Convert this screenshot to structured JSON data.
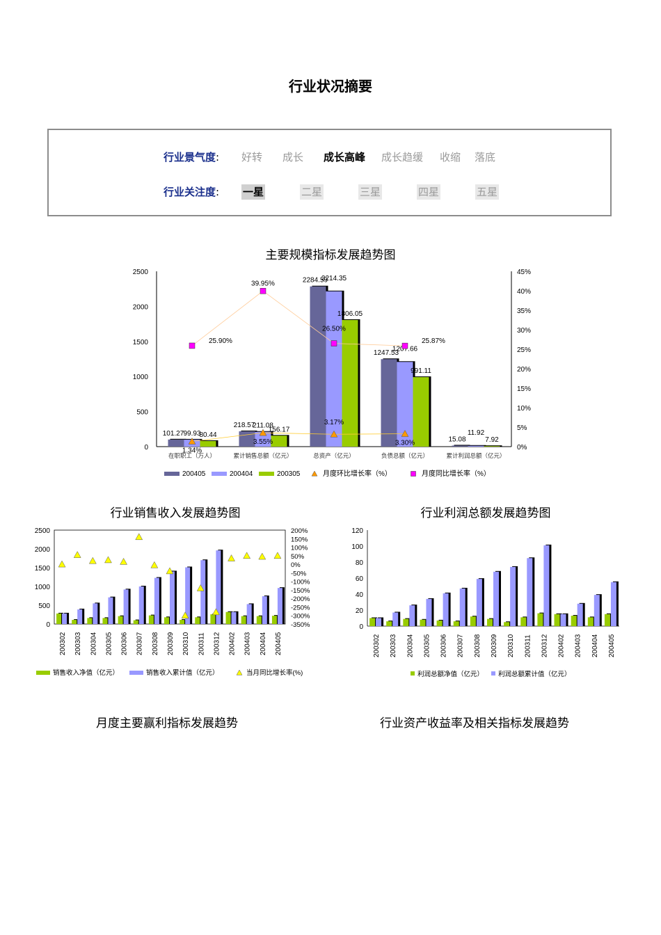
{
  "page": {
    "title": "行业状况摘要",
    "climate_label": "行业景气度",
    "attention_label": "行业关注度",
    "label_sep": ":",
    "climate_options": [
      "好转",
      "成长",
      "成长高峰",
      "成长趋缓",
      "收缩",
      "落底"
    ],
    "climate_active": 2,
    "attention_options": [
      "一星",
      "二星",
      "三星",
      "四星",
      "五星"
    ],
    "attention_active": 0,
    "bottom_left_title": "月度主要赢利指标发展趋势",
    "bottom_right_title": "行业资产收益率及相关指标发展趋势"
  },
  "chart_data": [
    {
      "id": "main",
      "type": "bar",
      "title": "主要规模指标发展趋势图",
      "categories": [
        "在职职工（万人）",
        "累计销售总额（亿元）",
        "总资产（亿元）",
        "负债总额（亿元）",
        "累计利润总额（亿元）"
      ],
      "series": [
        {
          "name": "200405",
          "values": [
            101.27,
            218.57,
            2284.59,
            1247.53,
            15.08
          ],
          "labels": [
            "101.27",
            "218.57",
            "2284.59",
            "1247.53",
            "15.08"
          ]
        },
        {
          "name": "200404",
          "values": [
            99.93,
            211.08,
            2214.35,
            1207.66,
            11.92
          ],
          "labels": [
            "99.93",
            "211.08",
            "2214.35",
            "1207.66",
            "11.92"
          ]
        },
        {
          "name": "200305",
          "values": [
            80.44,
            156.17,
            1806.05,
            991.11,
            7.92
          ],
          "labels": [
            "80.44",
            "156.17",
            "1806.05",
            "991.11",
            "7.92"
          ]
        }
      ],
      "line_series": [
        {
          "name": "月度环比增长率（%）",
          "values": [
            1.34,
            3.55,
            3.17,
            3.3
          ],
          "labels": [
            "1.34%",
            "3.55%",
            "3.17%",
            "3.30%"
          ]
        },
        {
          "name": "月度同比增长率（%）",
          "values": [
            25.9,
            39.95,
            26.5,
            25.87
          ],
          "labels": [
            "25.90%",
            "39.95%",
            "26.50%",
            "25.87%"
          ]
        }
      ],
      "y_left": {
        "min": 0,
        "max": 2500,
        "ticks": [
          "0",
          "500",
          "1000",
          "1500",
          "2000",
          "2500"
        ]
      },
      "y_right": {
        "min": 0,
        "max": 45,
        "ticks": [
          "0%",
          "5%",
          "10%",
          "15%",
          "20%",
          "25%",
          "30%",
          "35%",
          "40%",
          "45%"
        ]
      },
      "colors": {
        "s200405": "#666699",
        "s200404": "#9999ff",
        "s200305": "#99cc00",
        "mom": "#ff9900",
        "yoy": "#ff00ff",
        "mom_line": "#ffcc33",
        "yoy_line": "#ffcc99"
      },
      "legend": "bottom"
    },
    {
      "id": "sales",
      "type": "bar",
      "title": "行业销售收入发展趋势图",
      "categories": [
        "200302",
        "200303",
        "200304",
        "200305",
        "200306",
        "200307",
        "200308",
        "200309",
        "200310",
        "200311",
        "200312",
        "200402",
        "200403",
        "200404",
        "200405"
      ],
      "series": [
        {
          "name": "销售收入净值（亿元）",
          "values": [
            280,
            110,
            160,
            160,
            210,
            100,
            230,
            180,
            110,
            180,
            260,
            320,
            210,
            210,
            220
          ]
        },
        {
          "name": "销售收入累计值（亿元）",
          "values": [
            280,
            390,
            550,
            710,
            920,
            1000,
            1230,
            1400,
            1510,
            1700,
            1960,
            320,
            530,
            740,
            960
          ]
        }
      ],
      "line_series": [
        {
          "name": "当月同比增长率(%)",
          "values": [
            0,
            55,
            20,
            25,
            15,
            160,
            -5,
            -40,
            -300,
            -140,
            -280,
            35,
            50,
            45,
            50
          ]
        }
      ],
      "y_left": {
        "min": 0,
        "max": 2500,
        "ticks": [
          "0",
          "500",
          "1000",
          "1500",
          "2000",
          "2500"
        ]
      },
      "y_right": {
        "min": -350,
        "max": 200,
        "ticks": [
          "-350%",
          "-300%",
          "-250%",
          "-200%",
          "-150%",
          "-100%",
          "-50%",
          "0%",
          "50%",
          "100%",
          "150%",
          "200%"
        ]
      },
      "colors": {
        "s1": "#99cc00",
        "s2": "#9999ff",
        "line": "#ffff00"
      },
      "legend": "bottom"
    },
    {
      "id": "profit",
      "type": "bar",
      "title": "行业利润总额发展趋势图",
      "categories": [
        "200302",
        "200303",
        "200304",
        "200305",
        "200306",
        "200307",
        "200308",
        "200309",
        "200310",
        "200311",
        "200312",
        "200402",
        "200403",
        "200404",
        "200405"
      ],
      "series": [
        {
          "name": "利润总额净值（亿元）",
          "values": [
            10,
            6,
            9,
            8,
            7,
            6,
            12,
            9,
            5,
            11,
            16,
            15,
            13,
            11,
            15
          ]
        },
        {
          "name": "利润总额累计值（亿元）",
          "values": [
            10,
            17,
            26,
            34,
            41,
            47,
            59,
            68,
            74,
            85,
            101,
            15,
            28,
            39,
            55
          ]
        }
      ],
      "y_left": {
        "min": 0,
        "max": 120,
        "ticks": [
          "0",
          "20",
          "40",
          "60",
          "80",
          "100",
          "120"
        ]
      },
      "colors": {
        "s1": "#99cc00",
        "s2": "#9999ff"
      },
      "legend": "bottom"
    }
  ]
}
